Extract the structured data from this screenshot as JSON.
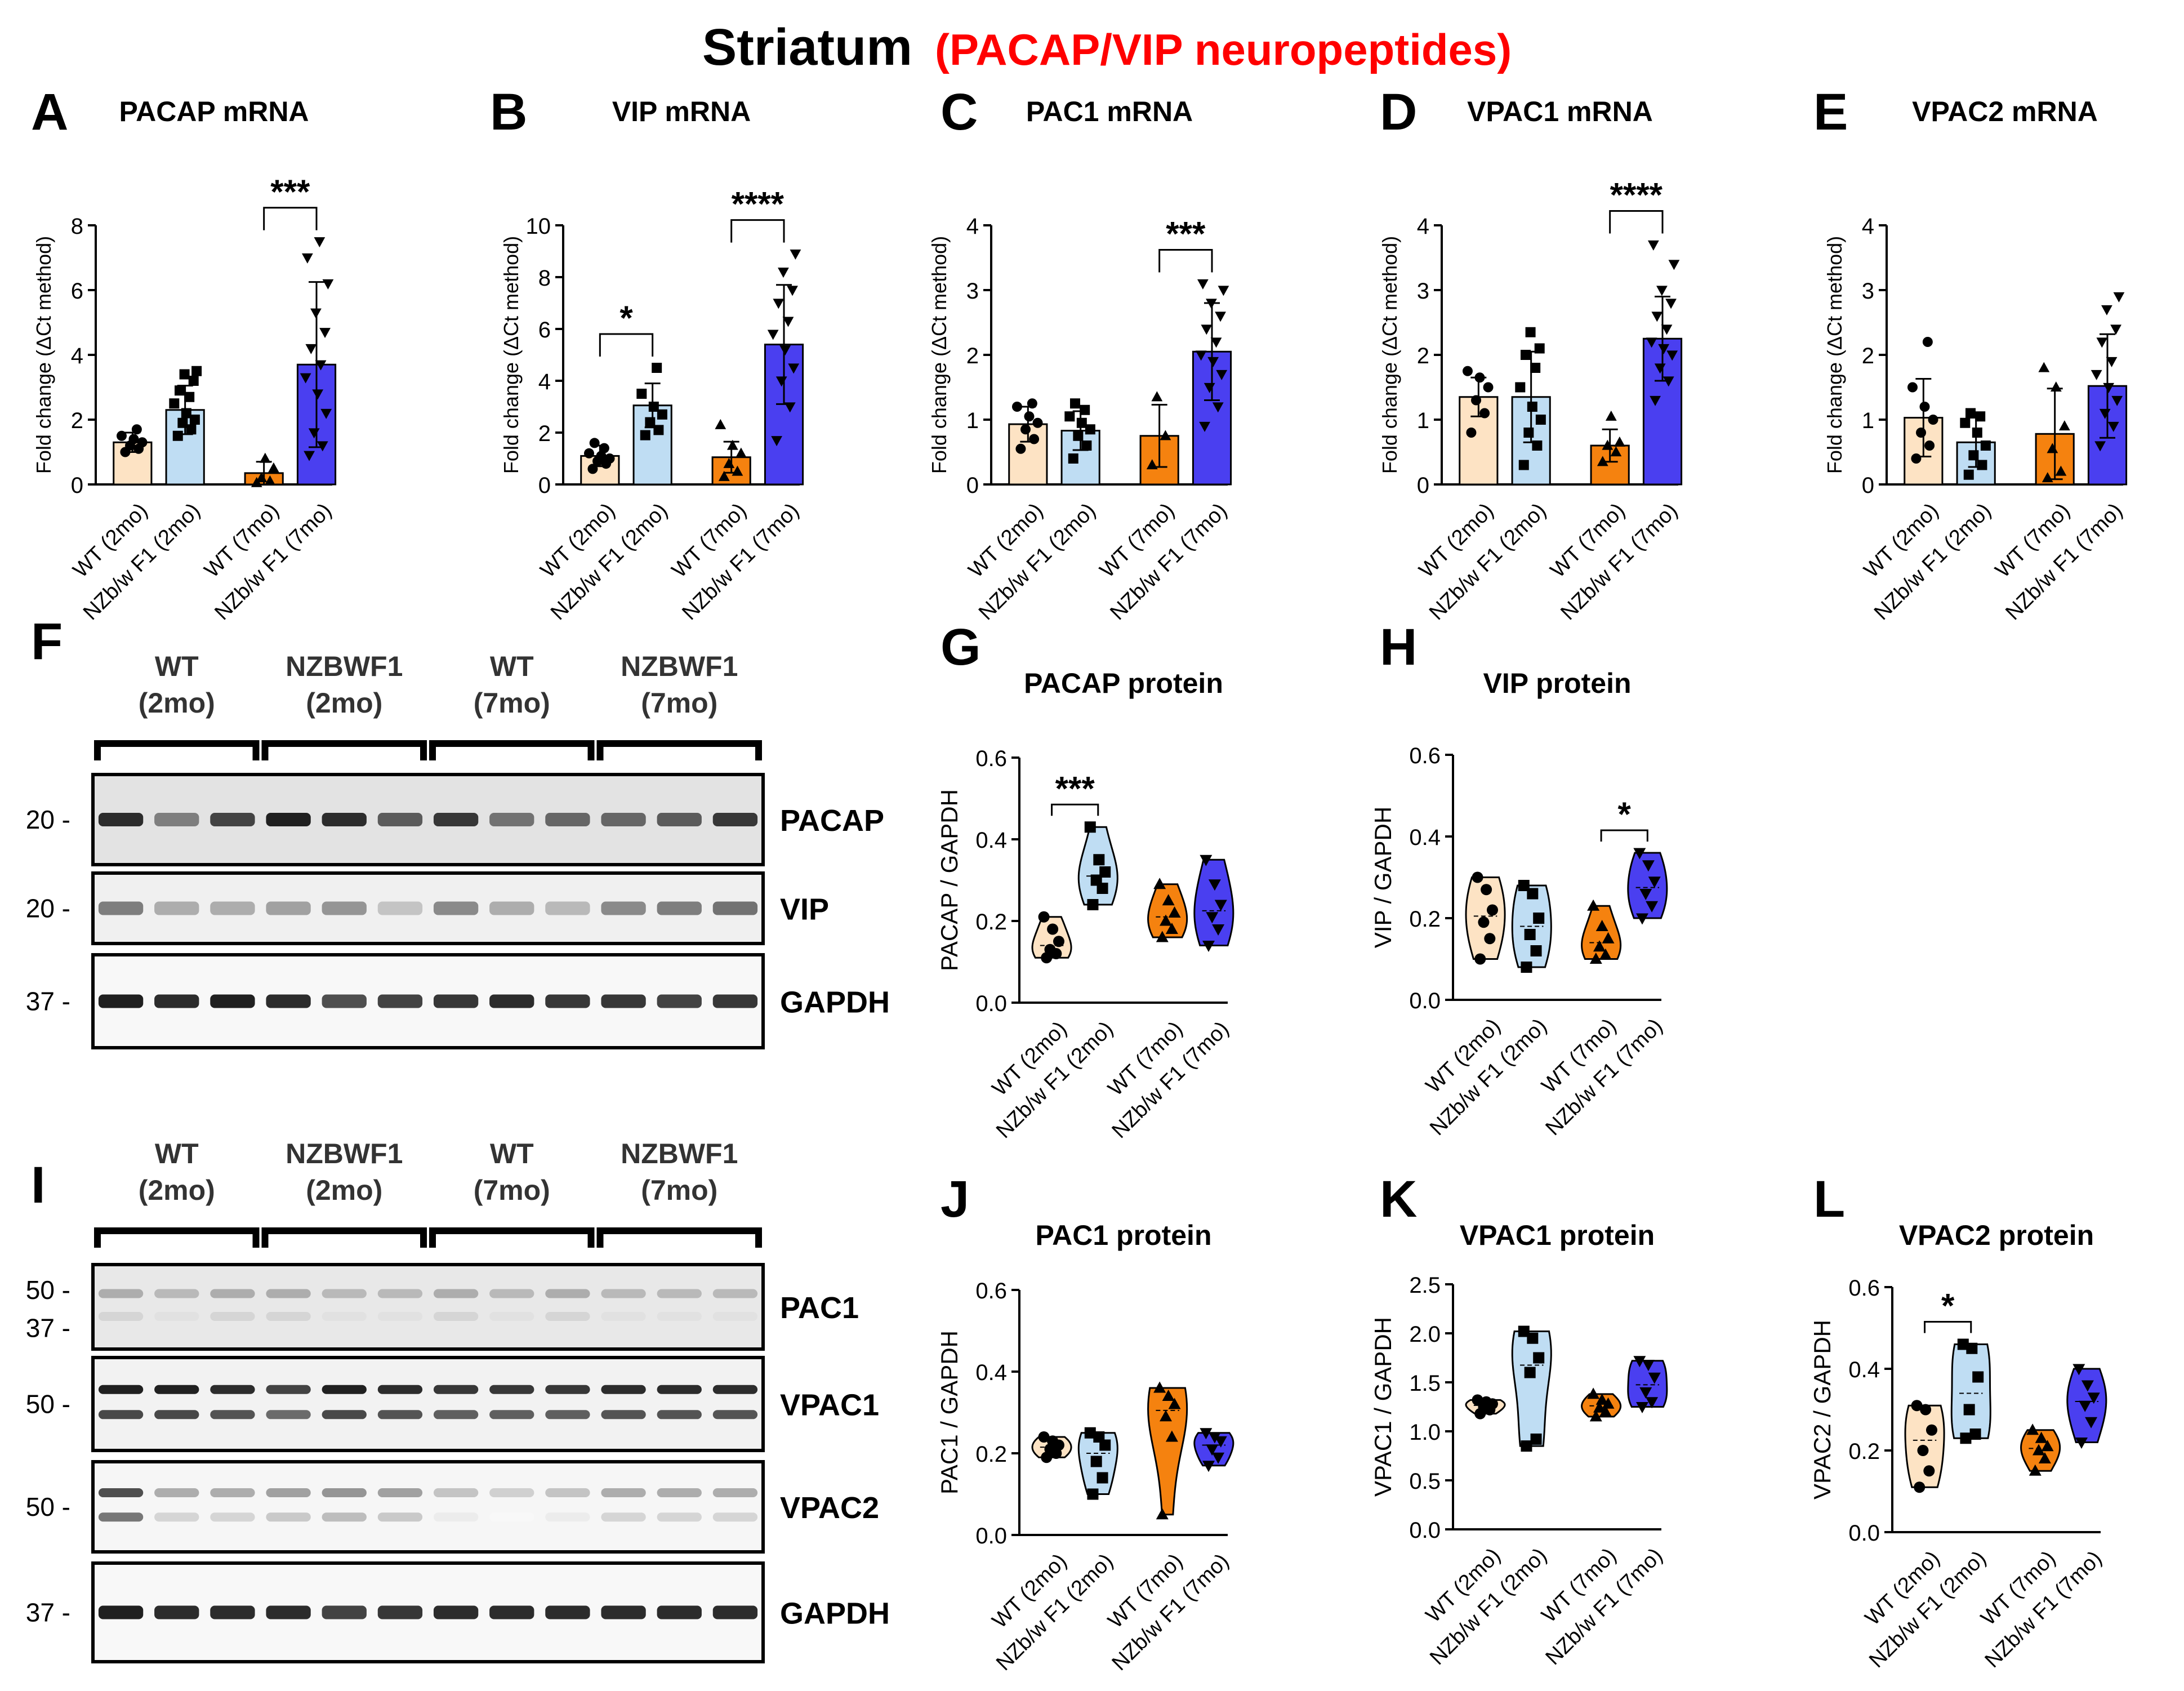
{
  "figure": {
    "title": "Striatum",
    "subtitle": "(PACAP/VIP neuropeptides)",
    "colors": {
      "wt2": "#FDE3C4",
      "nz2": "#BFDDF3",
      "wt7": "#F5820F",
      "nz7": "#4A3FF0",
      "title_red": "#FF0000",
      "text": "#000000"
    }
  },
  "chart_data": [
    {
      "panel": "A",
      "type": "bar",
      "title": "PACAP mRNA",
      "ylabel": "Fold change (ΔCt method)",
      "ylim": [
        0,
        8
      ],
      "yticks": [
        0,
        2,
        4,
        6,
        8
      ],
      "categories": [
        "WT (2mo)",
        "NZb/w F1 (2mo)",
        "WT (7mo)",
        "NZb/w F1 (7mo)"
      ],
      "values": [
        1.3,
        2.3,
        0.35,
        3.7
      ],
      "errors": [
        0.3,
        0.75,
        0.35,
        2.55
      ],
      "points": [
        [
          1.0,
          1.1,
          1.2,
          1.3,
          1.4,
          1.5,
          1.7
        ],
        [
          1.5,
          1.7,
          1.9,
          2.0,
          2.2,
          2.5,
          2.7,
          2.9,
          3.2,
          3.4,
          3.5
        ],
        [
          0.05,
          0.1,
          0.2,
          0.5,
          0.8
        ],
        [
          0.9,
          1.2,
          1.6,
          2.2,
          2.8,
          3.3,
          3.7,
          4.2,
          4.7,
          5.3,
          6.2,
          7.0,
          7.5
        ]
      ],
      "comparisons": [
        {
          "groups": [
            2,
            3
          ],
          "label": "***"
        }
      ]
    },
    {
      "panel": "B",
      "type": "bar",
      "title": "VIP mRNA",
      "ylabel": "Fold change (ΔCt method)",
      "ylim": [
        0,
        10
      ],
      "yticks": [
        0,
        2,
        4,
        6,
        8,
        10
      ],
      "categories": [
        "WT (2mo)",
        "NZb/w F1 (2mo)",
        "WT (7mo)",
        "NZb/w F1 (7mo)"
      ],
      "values": [
        1.1,
        3.05,
        1.05,
        5.4
      ],
      "errors": [
        0.4,
        0.85,
        0.6,
        2.3
      ],
      "points": [
        [
          0.6,
          0.8,
          0.9,
          1.0,
          1.1,
          1.2,
          1.4,
          1.6
        ],
        [
          1.9,
          2.1,
          2.4,
          2.7,
          3.0,
          3.5,
          4.5
        ],
        [
          0.3,
          0.5,
          0.8,
          1.2,
          1.5,
          2.3
        ],
        [
          1.7,
          3.0,
          4.0,
          4.5,
          5.2,
          5.8,
          6.3,
          7.0,
          7.5,
          8.2,
          8.9
        ]
      ],
      "comparisons": [
        {
          "groups": [
            0,
            1
          ],
          "label": "*"
        },
        {
          "groups": [
            2,
            3
          ],
          "label": "****"
        }
      ]
    },
    {
      "panel": "C",
      "type": "bar",
      "title": "PAC1 mRNA",
      "ylabel": "Fold change (ΔCt method)",
      "ylim": [
        0,
        4
      ],
      "yticks": [
        0,
        1,
        2,
        3,
        4
      ],
      "categories": [
        "WT (2mo)",
        "NZb/w F1 (2mo)",
        "WT (7mo)",
        "NZb/w F1 (7mo)"
      ],
      "values": [
        0.93,
        0.83,
        0.75,
        2.05
      ],
      "errors": [
        0.27,
        0.3,
        0.48,
        0.75
      ],
      "points": [
        [
          0.55,
          0.7,
          0.85,
          0.95,
          1.05,
          1.2,
          1.25
        ],
        [
          0.4,
          0.6,
          0.75,
          0.85,
          0.95,
          1.05,
          1.15,
          1.25
        ],
        [
          0.3,
          0.75,
          1.35
        ],
        [
          0.9,
          1.2,
          1.5,
          1.7,
          1.9,
          2.0,
          2.2,
          2.4,
          2.6,
          2.8,
          3.0,
          3.1
        ]
      ],
      "comparisons": [
        {
          "groups": [
            2,
            3
          ],
          "label": "***"
        }
      ]
    },
    {
      "panel": "D",
      "type": "bar",
      "title": "VPAC1 mRNA",
      "ylabel": "Fold change (ΔCt method)",
      "ylim": [
        0,
        4
      ],
      "yticks": [
        0,
        1,
        2,
        3,
        4
      ],
      "categories": [
        "WT (2mo)",
        "NZb/w F1 (2mo)",
        "WT (7mo)",
        "NZb/w F1 (7mo)"
      ],
      "values": [
        1.35,
        1.35,
        0.6,
        2.25
      ],
      "errors": [
        0.3,
        0.7,
        0.25,
        0.65
      ],
      "points": [
        [
          0.8,
          1.1,
          1.3,
          1.5,
          1.65,
          1.75
        ],
        [
          0.3,
          0.6,
          0.8,
          1.0,
          1.2,
          1.5,
          1.8,
          2.0,
          2.1,
          2.35
        ],
        [
          0.35,
          0.5,
          0.6,
          0.65,
          1.05
        ],
        [
          1.3,
          1.6,
          1.8,
          2.0,
          2.1,
          2.2,
          2.4,
          2.6,
          2.8,
          3.0,
          3.4,
          3.7
        ]
      ],
      "comparisons": [
        {
          "groups": [
            2,
            3
          ],
          "label": "****"
        }
      ]
    },
    {
      "panel": "E",
      "type": "bar",
      "title": "VPAC2 mRNA",
      "ylabel": "Fold change (ΔCt method)",
      "ylim": [
        0,
        4
      ],
      "yticks": [
        0,
        1,
        2,
        3,
        4
      ],
      "categories": [
        "WT (2mo)",
        "NZb/w F1 (2mo)",
        "WT (7mo)",
        "NZb/w F1 (7mo)"
      ],
      "values": [
        1.03,
        0.65,
        0.78,
        1.52
      ],
      "errors": [
        0.6,
        0.38,
        0.7,
        0.8
      ],
      "points": [
        [
          0.4,
          0.6,
          0.8,
          1.0,
          1.2,
          1.5,
          2.2
        ],
        [
          0.15,
          0.3,
          0.45,
          0.6,
          0.8,
          0.95,
          1.05,
          1.1
        ],
        [
          0.1,
          0.2,
          0.55,
          0.9,
          1.5,
          1.8
        ],
        [
          0.6,
          0.9,
          1.1,
          1.3,
          1.5,
          1.7,
          1.9,
          2.2,
          2.4,
          2.7,
          2.9
        ]
      ],
      "comparisons": []
    },
    {
      "panel": "G",
      "type": "violin",
      "title": "PACAP protein",
      "ylabel": "PACAP / GAPDH",
      "ylim": [
        0,
        0.6
      ],
      "yticks": [
        "0.0",
        "0.2",
        "0.4",
        "0.6"
      ],
      "categories": [
        "WT (2mo)",
        "NZb/w F1 (2mo)",
        "WT (7mo)",
        "NZb/w F1 (7mo)"
      ],
      "points": [
        [
          0.11,
          0.12,
          0.13,
          0.15,
          0.18,
          0.21
        ],
        [
          0.24,
          0.28,
          0.3,
          0.32,
          0.35,
          0.43
        ],
        [
          0.16,
          0.18,
          0.2,
          0.22,
          0.25,
          0.29
        ],
        [
          0.14,
          0.18,
          0.21,
          0.24,
          0.29,
          0.35
        ]
      ],
      "comparisons": [
        {
          "groups": [
            0,
            1
          ],
          "label": "***"
        }
      ]
    },
    {
      "panel": "H",
      "type": "violin",
      "title": "VIP protein",
      "ylabel": "VIP / GAPDH",
      "ylim": [
        0,
        0.6
      ],
      "yticks": [
        "0.0",
        "0.2",
        "0.4",
        "0.6"
      ],
      "categories": [
        "WT (2mo)",
        "NZb/w F1 (2mo)",
        "WT (7mo)",
        "NZb/w F1 (7mo)"
      ],
      "points": [
        [
          0.1,
          0.15,
          0.19,
          0.22,
          0.27,
          0.3
        ],
        [
          0.08,
          0.12,
          0.16,
          0.2,
          0.26,
          0.28
        ],
        [
          0.1,
          0.11,
          0.13,
          0.15,
          0.18,
          0.23
        ],
        [
          0.2,
          0.23,
          0.26,
          0.29,
          0.33,
          0.36
        ]
      ],
      "comparisons": [
        {
          "groups": [
            2,
            3
          ],
          "label": "*"
        }
      ]
    },
    {
      "panel": "J",
      "type": "violin",
      "title": "PAC1 protein",
      "ylabel": "PAC1 / GAPDH",
      "ylim": [
        0,
        0.6
      ],
      "yticks": [
        "0.0",
        "0.2",
        "0.4",
        "0.6"
      ],
      "categories": [
        "WT (2mo)",
        "NZb/w F1 (2mo)",
        "WT (7mo)",
        "NZb/w F1 (7mo)"
      ],
      "points": [
        [
          0.19,
          0.2,
          0.21,
          0.22,
          0.23,
          0.24
        ],
        [
          0.1,
          0.14,
          0.18,
          0.22,
          0.24,
          0.25
        ],
        [
          0.05,
          0.24,
          0.29,
          0.32,
          0.34,
          0.36
        ],
        [
          0.17,
          0.19,
          0.21,
          0.23,
          0.24,
          0.25
        ]
      ],
      "comparisons": []
    },
    {
      "panel": "K",
      "type": "violin",
      "title": "VPAC1 protein",
      "ylabel": "VPAC1 / GAPDH",
      "ylim": [
        0,
        2.5
      ],
      "yticks": [
        "0.0",
        "0.5",
        "1.0",
        "1.5",
        "2.0",
        "2.5"
      ],
      "categories": [
        "WT (2mo)",
        "NZb/w F1 (2mo)",
        "WT (7mo)",
        "NZb/w F1 (7mo)"
      ],
      "points": [
        [
          1.18,
          1.22,
          1.25,
          1.28,
          1.3,
          1.32
        ],
        [
          0.85,
          0.92,
          1.6,
          1.75,
          1.95,
          2.02
        ],
        [
          1.15,
          1.2,
          1.24,
          1.28,
          1.32,
          1.38
        ],
        [
          1.25,
          1.3,
          1.4,
          1.55,
          1.68,
          1.72
        ]
      ],
      "comparisons": []
    },
    {
      "panel": "L",
      "type": "violin",
      "title": "VPAC2 protein",
      "ylabel": "VPAC2 / GAPDH",
      "ylim": [
        0,
        0.6
      ],
      "yticks": [
        "0.0",
        "0.2",
        "0.4",
        "0.6"
      ],
      "categories": [
        "WT (2mo)",
        "NZb/w F1 (2mo)",
        "WT (7mo)",
        "NZb/w F1 (7mo)"
      ],
      "points": [
        [
          0.11,
          0.15,
          0.2,
          0.25,
          0.3,
          0.31
        ],
        [
          0.23,
          0.24,
          0.3,
          0.38,
          0.45,
          0.46
        ],
        [
          0.15,
          0.18,
          0.2,
          0.21,
          0.23,
          0.25
        ],
        [
          0.22,
          0.27,
          0.31,
          0.33,
          0.36,
          0.4
        ]
      ],
      "comparisons": [
        {
          "groups": [
            0,
            1
          ],
          "label": "*"
        }
      ]
    }
  ],
  "blots": [
    {
      "panel": "F",
      "groups": [
        {
          "line1": "WT",
          "line2": "(2mo)"
        },
        {
          "line1": "NZBWF1",
          "line2": "(2mo)"
        },
        {
          "line1": "WT",
          "line2": "(7mo)"
        },
        {
          "line1": "NZBWF1",
          "line2": "(7mo)"
        }
      ],
      "strips": [
        {
          "label": "PACAP",
          "markers": [
            "20"
          ],
          "bg": "#e3e3e3",
          "line_intensity": [
            0.9,
            0.55,
            0.8,
            0.95,
            0.9,
            0.7,
            0.85,
            0.6,
            0.65,
            0.65,
            0.7,
            0.85
          ]
        },
        {
          "label": "VIP",
          "markers": [
            "20"
          ],
          "bg": "#f0f0f0",
          "line_intensity": [
            0.55,
            0.35,
            0.35,
            0.4,
            0.45,
            0.25,
            0.5,
            0.35,
            0.3,
            0.5,
            0.55,
            0.6
          ]
        },
        {
          "label": "GAPDH",
          "markers": [
            "37"
          ],
          "bg": "#f8f8f8",
          "line_intensity": [
            0.95,
            0.9,
            0.95,
            0.9,
            0.75,
            0.8,
            0.85,
            0.9,
            0.85,
            0.85,
            0.8,
            0.85
          ]
        }
      ]
    },
    {
      "panel": "I",
      "groups": [
        {
          "line1": "WT",
          "line2": "(2mo)"
        },
        {
          "line1": "NZBWF1",
          "line2": "(2mo)"
        },
        {
          "line1": "WT",
          "line2": "(7mo)"
        },
        {
          "line1": "NZBWF1",
          "line2": "(7mo)"
        }
      ],
      "strips": [
        {
          "label": "PAC1",
          "markers": [
            "50",
            "37"
          ],
          "bg": "#e8e8e8",
          "line_intensity": [
            0.35,
            0.3,
            0.35,
            0.35,
            0.3,
            0.3,
            0.35,
            0.3,
            0.35,
            0.3,
            0.3,
            0.3
          ]
        },
        {
          "label": "VPAC1",
          "markers": [
            "50"
          ],
          "bg": "#f2f2f2",
          "line_intensity": [
            0.95,
            0.95,
            0.9,
            0.8,
            0.95,
            0.9,
            0.85,
            0.85,
            0.85,
            0.9,
            0.9,
            0.9
          ]
        },
        {
          "label": "VPAC2",
          "markers": [
            "50"
          ],
          "bg": "#f6f6f6",
          "line_intensity": [
            0.75,
            0.35,
            0.35,
            0.4,
            0.45,
            0.4,
            0.25,
            0.2,
            0.25,
            0.35,
            0.35,
            0.35
          ]
        },
        {
          "label": "GAPDH",
          "markers": [
            "37"
          ],
          "bg": "#f8f8f8",
          "line_intensity": [
            0.95,
            0.9,
            0.9,
            0.9,
            0.8,
            0.85,
            0.9,
            0.9,
            0.9,
            0.9,
            0.9,
            0.9
          ]
        }
      ]
    }
  ]
}
